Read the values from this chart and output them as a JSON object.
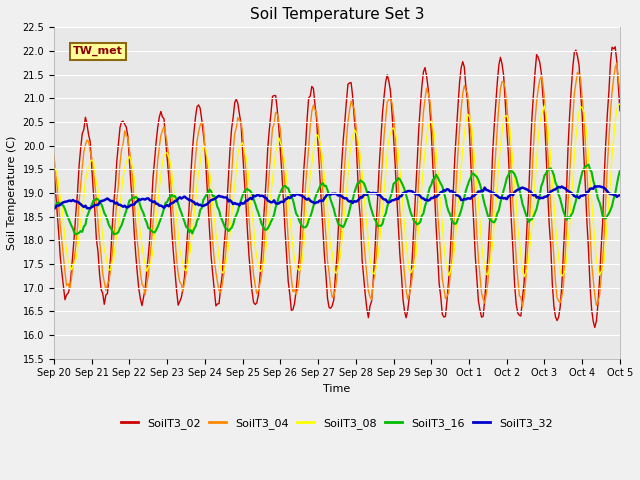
{
  "title": "Soil Temperature Set 3",
  "xlabel": "Time",
  "ylabel": "Soil Temperature (C)",
  "ylim": [
    15.5,
    22.5
  ],
  "yticks": [
    15.5,
    16.0,
    16.5,
    17.0,
    17.5,
    18.0,
    18.5,
    19.0,
    19.5,
    20.0,
    20.5,
    21.0,
    21.5,
    22.0,
    22.5
  ],
  "annotation_text": "TW_met",
  "annotation_color": "#8B0000",
  "annotation_bg": "#FFFF99",
  "annotation_border": "#8B6914",
  "bg_color": "#E8E8E8",
  "grid_color": "#FFFFFF",
  "fig_bg_color": "#F0F0F0",
  "series_order": [
    "SoilT3_02",
    "SoilT3_04",
    "SoilT3_08",
    "SoilT3_16",
    "SoilT3_32"
  ],
  "series": {
    "SoilT3_02": {
      "color": "#CC0000",
      "linewidth": 1.0
    },
    "SoilT3_04": {
      "color": "#FF8800",
      "linewidth": 1.0
    },
    "SoilT3_08": {
      "color": "#FFFF00",
      "linewidth": 1.0
    },
    "SoilT3_16": {
      "color": "#00BB00",
      "linewidth": 1.5
    },
    "SoilT3_32": {
      "color": "#0000CC",
      "linewidth": 1.8
    }
  },
  "xtick_labels": [
    "Sep 20",
    "Sep 21",
    "Sep 22",
    "Sep 23",
    "Sep 24",
    "Sep 25",
    "Sep 26",
    "Sep 27",
    "Sep 28",
    "Sep 29",
    "Sep 30",
    "Oct 1",
    "Oct 2",
    "Oct 3",
    "Oct 4",
    "Oct 5"
  ],
  "xtick_positions": [
    0,
    1,
    2,
    3,
    4,
    5,
    6,
    7,
    8,
    9,
    10,
    11,
    12,
    13,
    14,
    15
  ],
  "legend_entries": [
    "SoilT3_02",
    "SoilT3_04",
    "SoilT3_08",
    "SoilT3_16",
    "SoilT3_32"
  ],
  "legend_colors": [
    "#CC0000",
    "#FF8800",
    "#FFFF00",
    "#00BB00",
    "#0000CC"
  ],
  "title_fontsize": 11,
  "axis_label_fontsize": 8,
  "tick_fontsize": 7,
  "legend_fontsize": 8
}
